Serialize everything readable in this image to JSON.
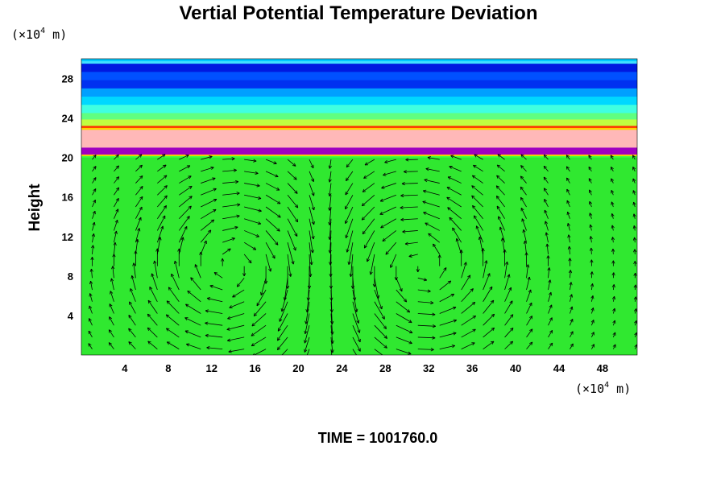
{
  "chart_data": {
    "type": "heatmap",
    "title": "Vertial Potential Temperature Deviation",
    "xlabel": "",
    "ylabel": "Height",
    "x_unit": {
      "prefix": "(×10",
      "exp": "4",
      "suffix": " m)"
    },
    "y_unit": {
      "prefix": "(×10",
      "exp": "4",
      "suffix": " m)"
    },
    "xlim": [
      0,
      51.2
    ],
    "ylim": [
      0,
      30
    ],
    "x_ticks": [
      4,
      8,
      12,
      16,
      20,
      24,
      28,
      32,
      36,
      40,
      44,
      48
    ],
    "y_ticks": [
      4,
      8,
      12,
      16,
      20,
      24,
      28
    ],
    "grid": false,
    "layers": [
      {
        "from": 29.5,
        "to": 30,
        "colors": [
          "#00c8ff",
          "#40e0ff"
        ]
      },
      {
        "from": 27.0,
        "to": 29.5,
        "colors": [
          "#0018e0",
          "#0050ff",
          "#0030f0"
        ]
      },
      {
        "from": 24.5,
        "to": 27.0,
        "colors": [
          "#00a0ff",
          "#00d8ff",
          "#40ffe0"
        ]
      },
      {
        "from": 23.2,
        "to": 24.5,
        "colors": [
          "#60ff80",
          "#c0ff40"
        ]
      },
      {
        "from": 22.8,
        "to": 23.2,
        "colors": [
          "#ff3000",
          "#ffd000"
        ]
      },
      {
        "from": 21.0,
        "to": 22.8,
        "colors": [
          "#ffb8b8"
        ]
      },
      {
        "from": 20.3,
        "to": 21.0,
        "colors": [
          "#a000c0"
        ]
      },
      {
        "from": 20.0,
        "to": 20.3,
        "colors": [
          "#ffd000",
          "#40ff40"
        ]
      },
      {
        "from": 0,
        "to": 20.0,
        "colors": [
          "#30e830"
        ]
      }
    ],
    "vector_field": {
      "description_free": true,
      "cells": [
        {
          "center_x": 14,
          "center_y": 9,
          "rotation": "clockwise"
        },
        {
          "center_x": 31,
          "center_y": 9,
          "rotation": "counterclockwise"
        }
      ],
      "grid_dx": 2,
      "grid_dy": 1.2
    }
  },
  "footer": {
    "time_label": "TIME = 1001760.0"
  }
}
